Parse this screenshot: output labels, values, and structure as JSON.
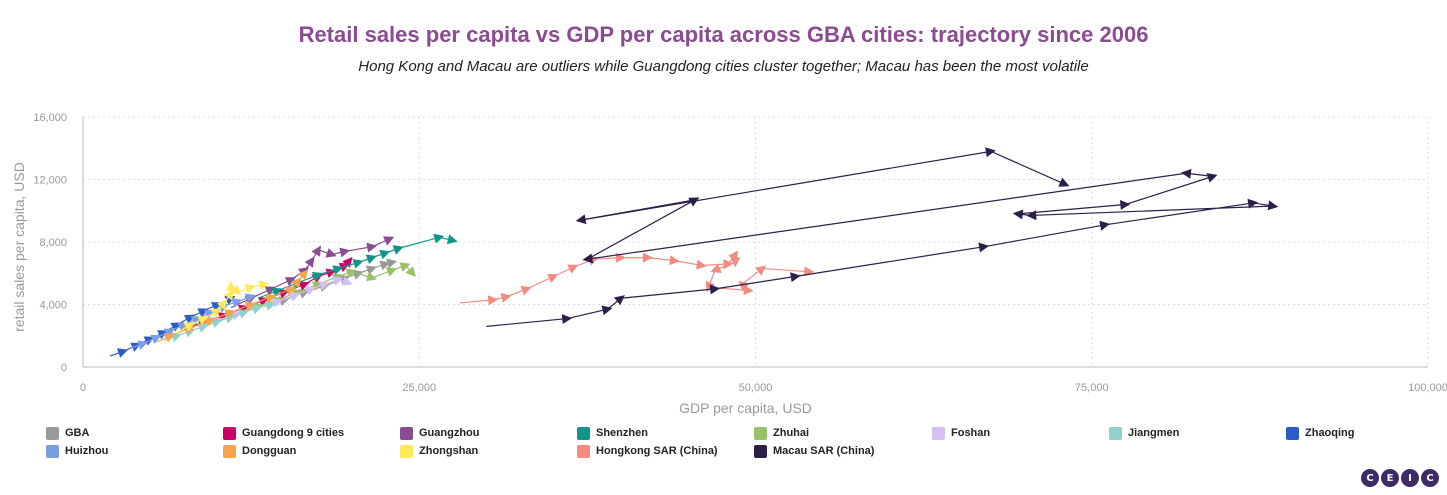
{
  "header": {
    "title": "Retail sales per capita vs GDP per capita across GBA cities: trajectory since 2006",
    "subtitle": "Hong Kong and Macau are outliers while Guangdong cities cluster together; Macau has been the most volatile"
  },
  "logo": {
    "text": "CEIC",
    "color": "#3d2a66"
  },
  "chart_data": {
    "type": "scatter",
    "title": "Retail sales per capita vs GDP per capita across GBA cities: trajectory since 2006",
    "subtitle": "Hong Kong and Macau are outliers while Guangdong cities cluster together; Macau has been the most volatile",
    "xlabel": "GDP per capita, USD",
    "ylabel": "retail sales per capita, USD",
    "xlim": [
      0,
      100000
    ],
    "ylim": [
      0,
      16000
    ],
    "x_ticks": [
      "0",
      "25,000",
      "50,000",
      "75,000",
      "100,000"
    ],
    "y_ticks": [
      "0",
      "4,000",
      "8,000",
      "12,000",
      "16,000"
    ],
    "x_tick_values": [
      0,
      25000,
      50000,
      75000,
      100000
    ],
    "y_tick_values": [
      0,
      4000,
      8000,
      12000,
      16000
    ],
    "grid": true,
    "legend_position": "bottom",
    "series": [
      {
        "name": "GBA",
        "color": "#999999",
        "points": [
          [
            9000,
            2900
          ],
          [
            11000,
            3300
          ],
          [
            13000,
            3800
          ],
          [
            15000,
            4300
          ],
          [
            16500,
            4800
          ],
          [
            18000,
            5200
          ],
          [
            19500,
            5700
          ],
          [
            20500,
            6000
          ],
          [
            21500,
            6300
          ],
          [
            22500,
            6600
          ],
          [
            23000,
            6700
          ]
        ]
      },
      {
        "name": "Guangdong 9 cities",
        "color": "#cc0066",
        "points": [
          [
            7500,
            2400
          ],
          [
            9000,
            2900
          ],
          [
            10500,
            3300
          ],
          [
            12000,
            3800
          ],
          [
            13500,
            4300
          ],
          [
            15000,
            4800
          ],
          [
            16500,
            5300
          ],
          [
            17500,
            5800
          ],
          [
            18500,
            6100
          ],
          [
            19500,
            6500
          ],
          [
            19800,
            6800
          ]
        ]
      },
      {
        "name": "Guangzhou",
        "color": "#8a4b91",
        "points": [
          [
            11000,
            3800
          ],
          [
            12500,
            4400
          ],
          [
            14000,
            5000
          ],
          [
            15500,
            5600
          ],
          [
            16500,
            6200
          ],
          [
            17000,
            6800
          ],
          [
            17500,
            7500
          ],
          [
            18500,
            7200
          ],
          [
            19500,
            7400
          ],
          [
            21500,
            7700
          ],
          [
            22800,
            8200
          ]
        ]
      },
      {
        "name": "Shenzhen",
        "color": "#129488",
        "points": [
          [
            13000,
            4400
          ],
          [
            14500,
            4900
          ],
          [
            16000,
            5400
          ],
          [
            17500,
            5900
          ],
          [
            19000,
            6300
          ],
          [
            20500,
            6700
          ],
          [
            21500,
            7000
          ],
          [
            22500,
            7300
          ],
          [
            23500,
            7600
          ],
          [
            26500,
            8300
          ],
          [
            27500,
            8100
          ]
        ]
      },
      {
        "name": "Zhuhai",
        "color": "#99c266",
        "points": [
          [
            11500,
            3500
          ],
          [
            13000,
            3900
          ],
          [
            14500,
            4300
          ],
          [
            16000,
            4800
          ],
          [
            17500,
            5300
          ],
          [
            19000,
            5800
          ],
          [
            20000,
            6100
          ],
          [
            21500,
            5700
          ],
          [
            23000,
            6200
          ],
          [
            24000,
            6500
          ],
          [
            24500,
            6000
          ]
        ]
      },
      {
        "name": "Foshan",
        "color": "#d5bff2",
        "points": [
          [
            8500,
            2600
          ],
          [
            10000,
            3000
          ],
          [
            11500,
            3400
          ],
          [
            13000,
            3800
          ],
          [
            14500,
            4200
          ],
          [
            15800,
            4600
          ],
          [
            17000,
            5000
          ],
          [
            18000,
            5300
          ],
          [
            19000,
            5600
          ],
          [
            19700,
            5400
          ]
        ]
      },
      {
        "name": "Jiangmen",
        "color": "#8fd1cc",
        "points": [
          [
            6000,
            1700
          ],
          [
            7000,
            2000
          ],
          [
            8000,
            2300
          ],
          [
            9000,
            2600
          ],
          [
            10000,
            2900
          ],
          [
            11000,
            3200
          ],
          [
            12000,
            3500
          ],
          [
            13000,
            3800
          ],
          [
            14000,
            4000
          ]
        ]
      },
      {
        "name": "Zhaoqing",
        "color": "#2b5bc7",
        "points": [
          [
            2000,
            700
          ],
          [
            3000,
            1000
          ],
          [
            4000,
            1400
          ],
          [
            5000,
            1800
          ],
          [
            6000,
            2200
          ],
          [
            7000,
            2700
          ],
          [
            8000,
            3200
          ],
          [
            9000,
            3600
          ],
          [
            10000,
            4000
          ],
          [
            11000,
            4400
          ]
        ]
      },
      {
        "name": "Huizhou",
        "color": "#7b9ee3",
        "points": [
          [
            3500,
            1200
          ],
          [
            4500,
            1500
          ],
          [
            5500,
            1900
          ],
          [
            6500,
            2300
          ],
          [
            7500,
            2700
          ],
          [
            8500,
            3100
          ],
          [
            9500,
            3500
          ],
          [
            10500,
            3900
          ],
          [
            11500,
            4200
          ],
          [
            12500,
            4500
          ]
        ]
      },
      {
        "name": "Dongguan",
        "color": "#f7a44a",
        "points": [
          [
            5500,
            1600
          ],
          [
            6500,
            2000
          ],
          [
            8000,
            2500
          ],
          [
            9500,
            3000
          ],
          [
            11000,
            3500
          ],
          [
            12500,
            4000
          ],
          [
            14000,
            4500
          ],
          [
            15500,
            5000
          ],
          [
            16000,
            5500
          ],
          [
            16500,
            6000
          ]
        ]
      },
      {
        "name": "Zhongshan",
        "color": "#ffe959",
        "points": [
          [
            7000,
            2200
          ],
          [
            8000,
            2700
          ],
          [
            9000,
            3100
          ],
          [
            10000,
            3600
          ],
          [
            10500,
            4100
          ],
          [
            11000,
            4700
          ],
          [
            11000,
            5200
          ],
          [
            11500,
            4800
          ],
          [
            12500,
            5100
          ],
          [
            13500,
            5300
          ]
        ]
      },
      {
        "name": "Hongkong SAR (China)",
        "color": "#f28b82",
        "points": [
          [
            28000,
            4100
          ],
          [
            30500,
            4300
          ],
          [
            31500,
            4500
          ],
          [
            33000,
            5000
          ],
          [
            35000,
            5800
          ],
          [
            36500,
            6400
          ],
          [
            38000,
            6900
          ],
          [
            40000,
            7000
          ],
          [
            42000,
            7000
          ],
          [
            44000,
            6800
          ],
          [
            46000,
            6500
          ],
          [
            48000,
            6600
          ],
          [
            48500,
            7200
          ],
          [
            48500,
            6700
          ],
          [
            47000,
            6200
          ],
          [
            46500,
            5100
          ],
          [
            49500,
            4900
          ],
          [
            49000,
            5300
          ],
          [
            50500,
            6300
          ],
          [
            54000,
            6100
          ]
        ]
      },
      {
        "name": "Macau SAR (China)",
        "color": "#2d1f4a",
        "points": [
          [
            30000,
            2600
          ],
          [
            36000,
            3100
          ],
          [
            39000,
            3700
          ],
          [
            40000,
            4400
          ],
          [
            47000,
            5000
          ],
          [
            53000,
            5800
          ],
          [
            67000,
            7700
          ],
          [
            76000,
            9100
          ],
          [
            87000,
            10500
          ],
          [
            88500,
            10300
          ],
          [
            70500,
            9700
          ],
          [
            69500,
            9800
          ],
          [
            77500,
            10400
          ],
          [
            84000,
            12200
          ],
          [
            82000,
            12400
          ],
          [
            37500,
            6900
          ],
          [
            45500,
            10700
          ],
          [
            37000,
            9400
          ],
          [
            67500,
            13800
          ],
          [
            73000,
            11700
          ]
        ]
      }
    ]
  },
  "legend": {
    "items": [
      {
        "label": "GBA",
        "color": "#999999"
      },
      {
        "label": "Guangdong 9 cities",
        "color": "#cc0066"
      },
      {
        "label": "Guangzhou",
        "color": "#8a4b91"
      },
      {
        "label": "Shenzhen",
        "color": "#129488"
      },
      {
        "label": "Zhuhai",
        "color": "#99c266"
      },
      {
        "label": "Foshan",
        "color": "#d5bff2"
      },
      {
        "label": "Jiangmen",
        "color": "#8fd1cc"
      },
      {
        "label": "Zhaoqing",
        "color": "#2b5bc7"
      },
      {
        "label": "Huizhou",
        "color": "#7b9ee3"
      },
      {
        "label": "Dongguan",
        "color": "#f7a44a"
      },
      {
        "label": "Zhongshan",
        "color": "#ffe959"
      },
      {
        "label": "Hongkong SAR (China)",
        "color": "#f28b82"
      },
      {
        "label": "Macau SAR (China)",
        "color": "#2d1f4a"
      }
    ]
  }
}
